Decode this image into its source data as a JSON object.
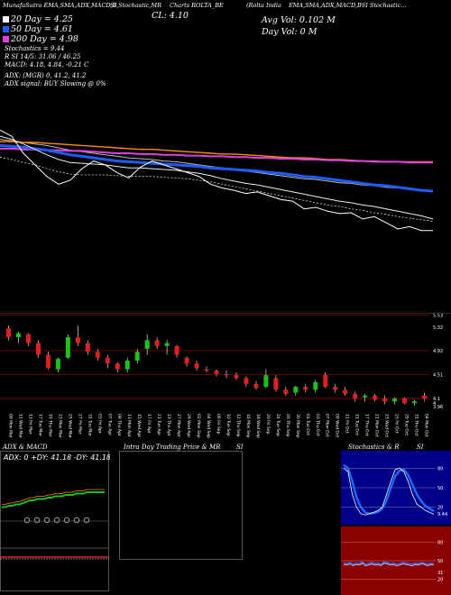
{
  "header": {
    "top_line": [
      "MunafaSutra EMA,SMA,ADX,MACD,B",
      "SI,Stochastic,MR",
      "Charts ROLTA_BE",
      "(Rolta India",
      "EMA,SMA,ADX,MACD,BSI Stochastic..."
    ],
    "close": "CL: 4.10",
    "avg_vol": "Avg Vol: 0.102 M",
    "day_vol": "Day Vol: 0  M",
    "legend": [
      {
        "label": "20 Day = 4.25",
        "color": "#ffffff"
      },
      {
        "label": "50 Day = 4.61",
        "color": "#1e5cff"
      },
      {
        "label": "200 Day = 4.98",
        "color": "#e040e0"
      }
    ],
    "stoch": "Stochastics = 9.44",
    "rsi": "R                   SI 14/5: 31.06  / 46.25",
    "macd": "MACD: 4.18, 4.84, -0.21 C",
    "adx": "ADX:                              (MGR) 0, 41.2, 41.2",
    "adx_signal": "ADX signal:                              BUY Slowing @ 0%"
  },
  "colors": {
    "bg": "#000000",
    "orange": "#ff8c00",
    "blue": "#1e5cff",
    "magenta": "#e040e0",
    "up": "#19c219",
    "down": "#e02020",
    "maroon": "#8a0000"
  },
  "price_chart": {
    "lines": {
      "close": [
        5.4,
        5.32,
        5.1,
        4.95,
        4.8,
        4.7,
        4.75,
        4.9,
        5.0,
        4.95,
        4.85,
        4.78,
        4.92,
        5.0,
        4.95,
        4.9,
        4.85,
        4.8,
        4.7,
        4.65,
        4.62,
        4.58,
        4.6,
        4.55,
        4.5,
        4.48,
        4.38,
        4.4,
        4.35,
        4.32,
        4.33,
        4.25,
        4.28,
        4.2,
        4.12,
        4.15,
        4.1,
        4.1
      ],
      "ema20": [
        5.32,
        5.28,
        5.22,
        5.15,
        5.08,
        5.02,
        4.98,
        4.97,
        4.96,
        4.95,
        4.93,
        4.91,
        4.91,
        4.9,
        4.89,
        4.88,
        4.86,
        4.84,
        4.81,
        4.77,
        4.74,
        4.71,
        4.69,
        4.66,
        4.63,
        4.6,
        4.57,
        4.54,
        4.51,
        4.48,
        4.46,
        4.43,
        4.41,
        4.38,
        4.35,
        4.32,
        4.29,
        4.25
      ],
      "sma50": [
        5.2,
        5.19,
        5.18,
        5.16,
        5.14,
        5.11,
        5.08,
        5.06,
        5.04,
        5.02,
        5.0,
        4.99,
        4.98,
        4.97,
        4.96,
        4.95,
        4.94,
        4.93,
        4.91,
        4.9,
        4.89,
        4.88,
        4.87,
        4.85,
        4.84,
        4.82,
        4.8,
        4.79,
        4.77,
        4.75,
        4.73,
        4.71,
        4.69,
        4.68,
        4.66,
        4.64,
        4.62,
        4.61
      ],
      "sma200": [
        5.16,
        5.16,
        5.15,
        5.15,
        5.14,
        5.14,
        5.13,
        5.13,
        5.12,
        5.11,
        5.1,
        5.1,
        5.09,
        5.09,
        5.08,
        5.08,
        5.07,
        5.07,
        5.06,
        5.06,
        5.05,
        5.05,
        5.04,
        5.04,
        5.03,
        5.03,
        5.02,
        5.02,
        5.01,
        5.01,
        5.0,
        5.0,
        4.99,
        4.99,
        4.99,
        4.98,
        4.98,
        4.98
      ],
      "orange": [
        5.25,
        5.25,
        5.24,
        5.24,
        5.23,
        5.22,
        5.21,
        5.2,
        5.19,
        5.18,
        5.17,
        5.16,
        5.15,
        5.15,
        5.14,
        5.13,
        5.12,
        5.11,
        5.1,
        5.09,
        5.09,
        5.08,
        5.07,
        5.06,
        5.05,
        5.04,
        5.04,
        5.03,
        5.02,
        5.02,
        5.01,
        5.0,
        5.0,
        4.99,
        4.99,
        4.99,
        4.99,
        4.99
      ],
      "grey": [
        5.28,
        5.26,
        5.24,
        5.22,
        5.2,
        5.17,
        5.14,
        5.12,
        5.1,
        5.08,
        5.06,
        5.04,
        5.03,
        5.02,
        5.0,
        4.99,
        4.97,
        4.95,
        4.93,
        4.91,
        4.89,
        4.87,
        4.85,
        4.83,
        4.81,
        4.79,
        4.77,
        4.76,
        4.74,
        4.72,
        4.71,
        4.69,
        4.68,
        4.66,
        4.65,
        4.63,
        4.62,
        4.61
      ],
      "dashed": [
        5.05,
        5.02,
        4.98,
        4.95,
        4.9,
        4.86,
        4.83,
        4.82,
        4.82,
        4.82,
        4.81,
        4.8,
        4.8,
        4.8,
        4.79,
        4.78,
        4.77,
        4.75,
        4.73,
        4.7,
        4.67,
        4.64,
        4.61,
        4.58,
        4.55,
        4.52,
        4.49,
        4.46,
        4.43,
        4.41,
        4.38,
        4.36,
        4.33,
        4.31,
        4.28,
        4.26,
        4.24,
        4.22
      ]
    }
  },
  "chart_data": {
    "type": "candlestick",
    "ylim": [
      3.9,
      5.6
    ],
    "y_ticks": [
      {
        "v": 5.53,
        "label": "5.53"
      },
      {
        "v": 5.32,
        "label": "5.32"
      },
      {
        "v": 4.92,
        "label": "4.92"
      },
      {
        "v": 4.51,
        "label": "4.51"
      },
      {
        "v": 4.1,
        "label": "4.1"
      },
      {
        "v": 4.02,
        "label": "4"
      },
      {
        "v": 3.96,
        "label": "3.96"
      }
    ],
    "categories": [
      "09 Mon",
      "11 Wed",
      "13 Fri",
      "17 Tue",
      "19 Thu",
      "23 Mon",
      "25 Wed",
      "27 Fri",
      "31 Tue",
      "03 Fri",
      "07 Tue",
      "09 Thu",
      "13 Mon",
      "15 Wed",
      "17 Fri",
      "21 Tue",
      "23 Thu",
      "27 Mon",
      "29 Wed",
      "02 Mon",
      "04 Wed",
      "06 Fri",
      "10 Tue",
      "12 Thu",
      "16 Mon",
      "18 Wed",
      "20 Fri",
      "24 Tue",
      "26 Thu",
      "30 Mon",
      "01 Tue",
      "03 Thu",
      "07 Mon",
      "09 Wed",
      "11 Fri",
      "15 Tue",
      "17 Thu",
      "21 Mon",
      "23 Wed",
      "25 Fri",
      "29 Tue",
      "31 Thu",
      "04 Mon"
    ],
    "month_labels": [
      "Mar",
      "Mar",
      "Mar",
      "Mar",
      "Mar",
      "Mar",
      "Mar",
      "Mar",
      "Mar",
      "Apr",
      "Apr",
      "Apr",
      "Apr",
      "Apr",
      "Apr",
      "Apr",
      "Apr",
      "Apr",
      "Apr",
      "Sep",
      "Sep",
      "Sep",
      "Sep",
      "Sep",
      "Sep",
      "Sep",
      "Sep",
      "Sep",
      "Sep",
      "Sep",
      "Oct",
      "Oct",
      "Oct",
      "Oct",
      "Oct",
      "Oct",
      "Oct",
      "Oct",
      "Oct",
      "Oct",
      "Oct",
      "Oct",
      "Oct"
    ],
    "candles": [
      {
        "o": 5.3,
        "h": 5.35,
        "l": 5.1,
        "c": 5.15
      },
      {
        "o": 5.15,
        "h": 5.25,
        "l": 5.05,
        "c": 5.22
      },
      {
        "o": 5.2,
        "h": 5.22,
        "l": 5.0,
        "c": 5.05
      },
      {
        "o": 5.05,
        "h": 5.1,
        "l": 4.8,
        "c": 4.85
      },
      {
        "o": 4.85,
        "h": 4.9,
        "l": 4.6,
        "c": 4.62
      },
      {
        "o": 4.6,
        "h": 4.8,
        "l": 4.55,
        "c": 4.78
      },
      {
        "o": 4.8,
        "h": 5.2,
        "l": 4.78,
        "c": 5.15
      },
      {
        "o": 5.15,
        "h": 5.35,
        "l": 5.0,
        "c": 5.05
      },
      {
        "o": 5.05,
        "h": 5.1,
        "l": 4.85,
        "c": 4.9
      },
      {
        "o": 4.9,
        "h": 4.95,
        "l": 4.75,
        "c": 4.8
      },
      {
        "o": 4.8,
        "h": 4.85,
        "l": 4.62,
        "c": 4.7
      },
      {
        "o": 4.7,
        "h": 4.72,
        "l": 4.55,
        "c": 4.6
      },
      {
        "o": 4.6,
        "h": 4.8,
        "l": 4.55,
        "c": 4.75
      },
      {
        "o": 4.75,
        "h": 4.95,
        "l": 4.7,
        "c": 4.9
      },
      {
        "o": 4.95,
        "h": 5.2,
        "l": 4.85,
        "c": 5.1
      },
      {
        "o": 5.1,
        "h": 5.15,
        "l": 4.95,
        "c": 5.0
      },
      {
        "o": 5.0,
        "h": 5.1,
        "l": 4.85,
        "c": 5.05
      },
      {
        "o": 5.0,
        "h": 5.02,
        "l": 4.8,
        "c": 4.85
      },
      {
        "o": 4.8,
        "h": 4.82,
        "l": 4.65,
        "c": 4.7
      },
      {
        "o": 4.7,
        "h": 4.75,
        "l": 4.58,
        "c": 4.62
      },
      {
        "o": 4.6,
        "h": 4.65,
        "l": 4.55,
        "c": 4.58
      },
      {
        "o": 4.58,
        "h": 4.6,
        "l": 4.48,
        "c": 4.52
      },
      {
        "o": 4.52,
        "h": 4.58,
        "l": 4.45,
        "c": 4.5
      },
      {
        "o": 4.5,
        "h": 4.55,
        "l": 4.42,
        "c": 4.45
      },
      {
        "o": 4.45,
        "h": 4.48,
        "l": 4.3,
        "c": 4.35
      },
      {
        "o": 4.35,
        "h": 4.4,
        "l": 4.25,
        "c": 4.28
      },
      {
        "o": 4.3,
        "h": 4.6,
        "l": 4.28,
        "c": 4.5
      },
      {
        "o": 4.45,
        "h": 4.5,
        "l": 4.22,
        "c": 4.25
      },
      {
        "o": 4.25,
        "h": 4.3,
        "l": 4.15,
        "c": 4.18
      },
      {
        "o": 4.2,
        "h": 4.32,
        "l": 4.15,
        "c": 4.3
      },
      {
        "o": 4.3,
        "h": 4.35,
        "l": 4.2,
        "c": 4.25
      },
      {
        "o": 4.25,
        "h": 4.42,
        "l": 4.2,
        "c": 4.38
      },
      {
        "o": 4.5,
        "h": 4.55,
        "l": 4.28,
        "c": 4.3
      },
      {
        "o": 4.3,
        "h": 4.35,
        "l": 4.2,
        "c": 4.25
      },
      {
        "o": 4.25,
        "h": 4.3,
        "l": 4.15,
        "c": 4.18
      },
      {
        "o": 4.18,
        "h": 4.22,
        "l": 4.05,
        "c": 4.1
      },
      {
        "o": 4.12,
        "h": 4.18,
        "l": 4.05,
        "c": 4.15
      },
      {
        "o": 4.15,
        "h": 4.18,
        "l": 4.05,
        "c": 4.08
      },
      {
        "o": 4.1,
        "h": 4.15,
        "l": 4.0,
        "c": 4.05
      },
      {
        "o": 4.05,
        "h": 4.12,
        "l": 4.0,
        "c": 4.1
      },
      {
        "o": 4.1,
        "h": 4.12,
        "l": 4.0,
        "c": 4.02
      },
      {
        "o": 4.02,
        "h": 4.08,
        "l": 3.98,
        "c": 4.05
      },
      {
        "o": 4.15,
        "h": 4.2,
        "l": 4.05,
        "c": 4.1
      }
    ]
  },
  "panels": {
    "adx_title": "ADX  & MACD",
    "adx_readout": "ADX: 0  +DY: 41.18  -DY: 41.18",
    "mr_title": "Intra  Day Trading Price  & MR",
    "mr_si": "SI",
    "stoch_title": "Stochastics & R",
    "stoch_si": "SI",
    "stoch_ticks": [
      "80",
      "50",
      "20",
      "9.44"
    ],
    "rsi_ticks": [
      "80",
      "50",
      "20",
      "31"
    ],
    "adx_line": [
      30,
      30,
      31,
      31,
      32,
      32,
      33,
      34,
      35,
      35,
      36,
      36,
      36,
      37,
      37,
      38,
      38,
      38,
      39,
      39,
      39,
      40,
      40,
      40,
      41,
      41,
      41,
      41,
      41,
      41
    ],
    "stoch_k": [
      80,
      75,
      40,
      20,
      10,
      8,
      10,
      12,
      15,
      20,
      40,
      60,
      78,
      80,
      75,
      60,
      40,
      25,
      20,
      15,
      12,
      9
    ],
    "stoch_d": [
      85,
      80,
      60,
      35,
      20,
      12,
      10,
      11,
      13,
      18,
      30,
      50,
      68,
      76,
      78,
      70,
      55,
      40,
      30,
      22,
      18,
      14
    ],
    "rsi_line": [
      46,
      45,
      47,
      44,
      46,
      45,
      48,
      44,
      45,
      47,
      45,
      46,
      44,
      48,
      47,
      45,
      46,
      44,
      45,
      47,
      46,
      45,
      44,
      46,
      45,
      47,
      46,
      44,
      46,
      45
    ]
  }
}
